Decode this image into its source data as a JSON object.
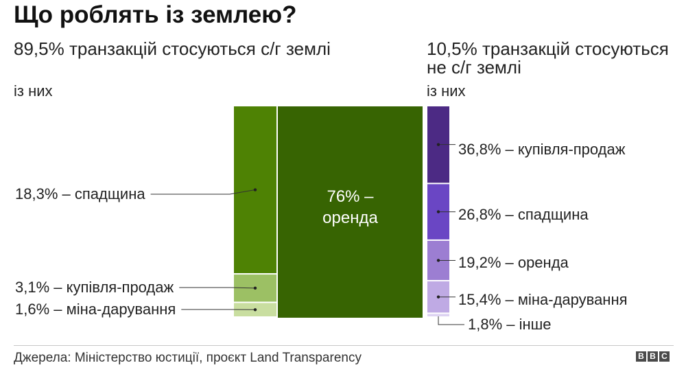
{
  "title": "Що роблять із землею?",
  "left_heading": "89,5% транзакцій стосуються с/г землі",
  "right_heading": "10,5% транзакцій стосуються не с/г землі",
  "of_them_left": "із них",
  "of_them_right": "із них",
  "source": "Джерела: Міністерство юстиції, проєкт Land Transparency",
  "logo": [
    "B",
    "B",
    "C"
  ],
  "chart_data": {
    "type": "treemap",
    "groups": [
      {
        "name": "с/г земля",
        "share": 89.5,
        "items": [
          {
            "label": "18,3% – спадщина",
            "value": 18.3,
            "color": "#4e8204"
          },
          {
            "label": "3,1% – купівля-продаж",
            "value": 3.1,
            "color": "#9cc064"
          },
          {
            "label": "1,6% – міна-дарування",
            "value": 1.6,
            "color": "#c9dea0"
          },
          {
            "label": "76% – оренда",
            "lines": [
              "76% –",
              "оренда"
            ],
            "value": 76,
            "color": "#376402"
          }
        ]
      },
      {
        "name": "не с/г земля",
        "share": 10.5,
        "items": [
          {
            "label": "36,8% – купівля-продаж",
            "value": 36.8,
            "color": "#4c2a84"
          },
          {
            "label": "26,8% – спадщина",
            "value": 26.8,
            "color": "#6a46c4"
          },
          {
            "label": "19,2% – оренда",
            "value": 19.2,
            "color": "#9c7ed2"
          },
          {
            "label": "15,4% – міна-дарування",
            "value": 15.4,
            "color": "#bfaae4"
          },
          {
            "label": "1,8% –  інше",
            "value": 1.8,
            "color": "#ddd3f2"
          }
        ]
      }
    ]
  }
}
